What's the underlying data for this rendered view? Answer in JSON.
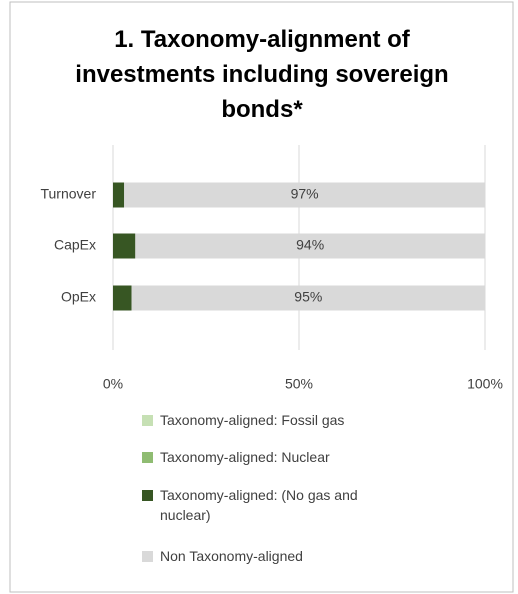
{
  "chart_data": {
    "type": "stacked_bar_horizontal",
    "title": "1. Taxonomy-alignment of investments including sovereign bonds*",
    "categories": [
      "Turnover",
      "CapEx",
      "OpEx"
    ],
    "series": [
      {
        "name": "Taxonomy-aligned: Fossil gas",
        "color": "#c6e0b4",
        "values": [
          0,
          0,
          0
        ]
      },
      {
        "name": "Taxonomy-aligned: Nuclear",
        "color": "#8fbc72",
        "values": [
          0,
          0,
          0
        ]
      },
      {
        "name": "Taxonomy-aligned: (No gas and nuclear)",
        "color": "#375623",
        "values": [
          3,
          6,
          5
        ]
      },
      {
        "name": "Non Taxonomy-aligned",
        "color": "#d9d9d9",
        "values": [
          97,
          94,
          95
        ],
        "value_labels": [
          "97%",
          "94%",
          "95%"
        ]
      }
    ],
    "xlim": [
      0,
      100
    ],
    "xticks": [
      {
        "value": 0,
        "label": "0%"
      },
      {
        "value": 50,
        "label": "50%"
      },
      {
        "value": 100,
        "label": "100%"
      }
    ],
    "grid": true,
    "legend": "bottom"
  }
}
